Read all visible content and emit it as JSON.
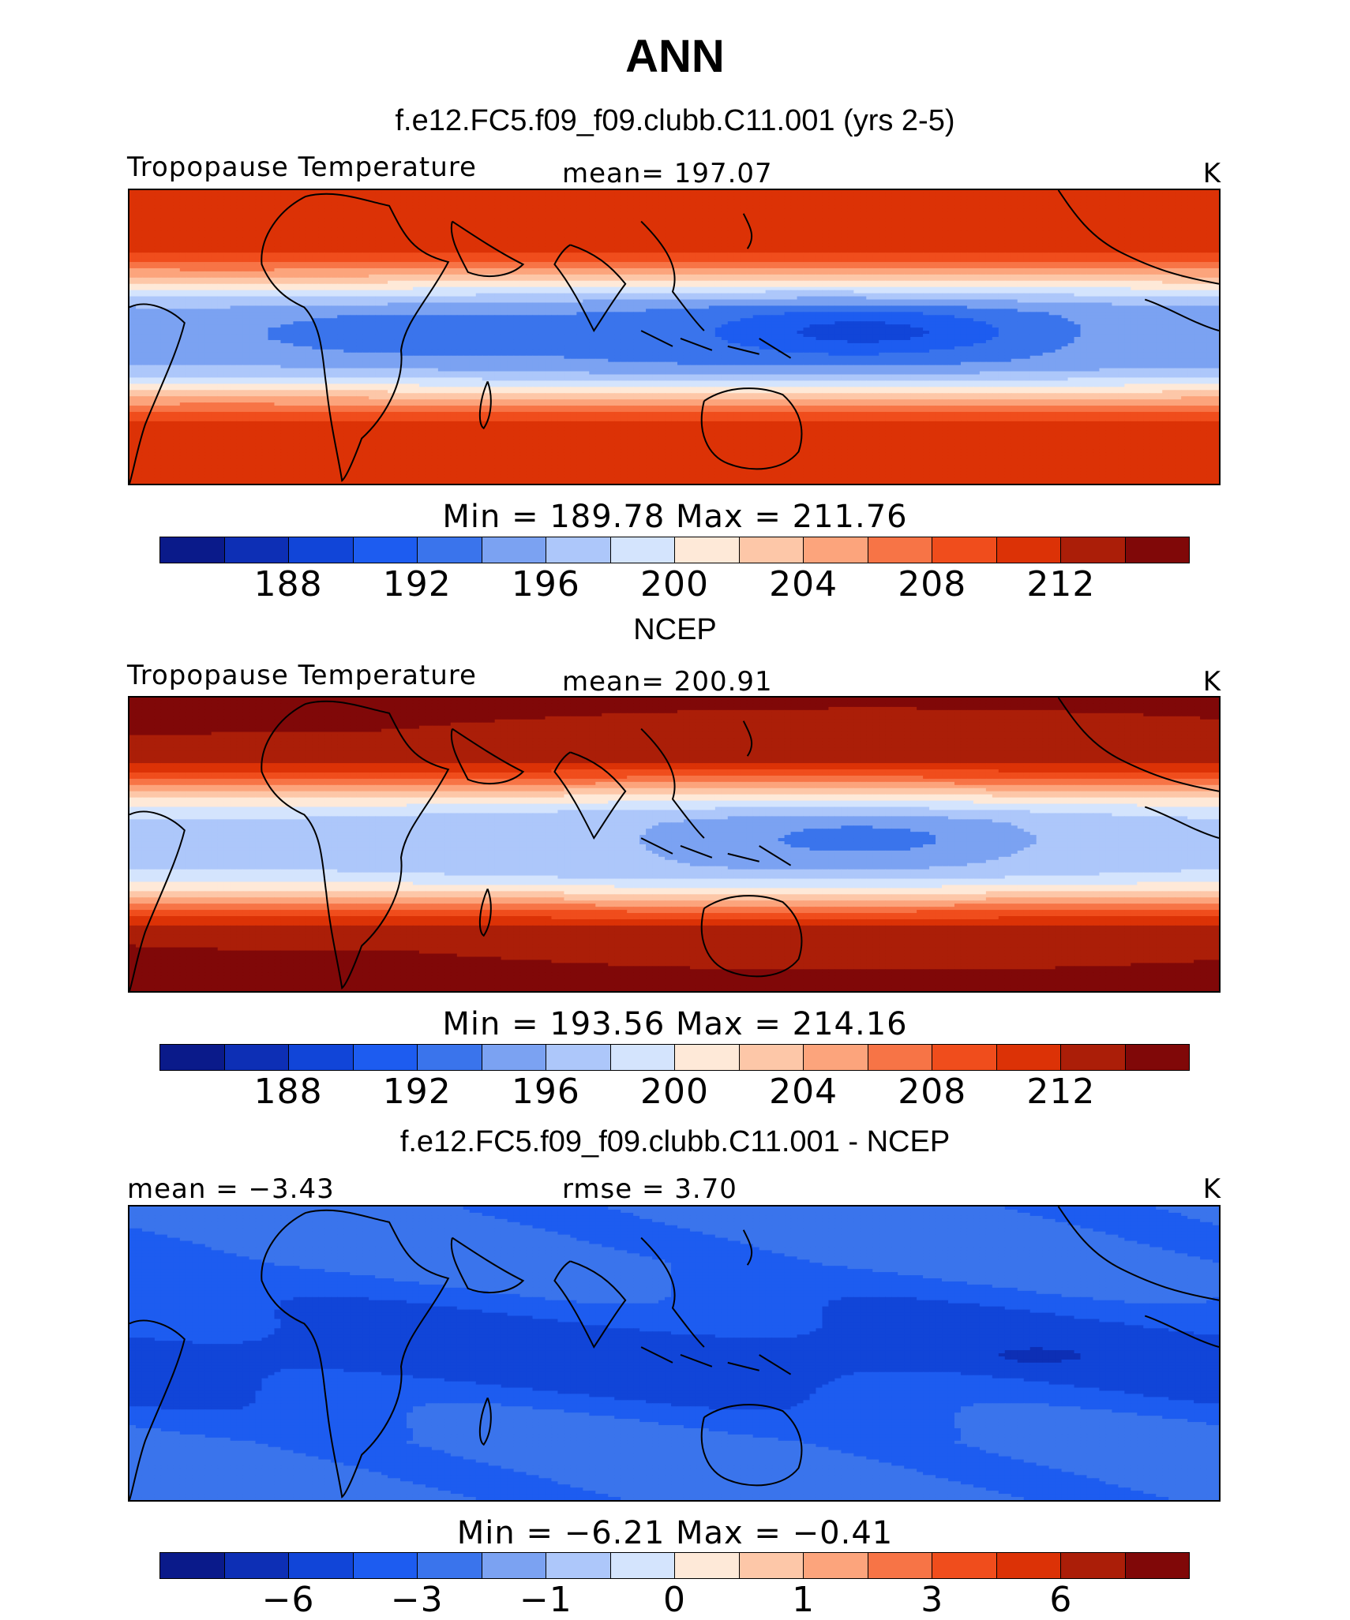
{
  "page_title": "ANN",
  "colors": [
    "#0a1a8a",
    "#0d2fb5",
    "#1145d8",
    "#1d5cf0",
    "#3a74ec",
    "#7ba2f2",
    "#adc7fa",
    "#d4e4fd",
    "#fee9d8",
    "#fdc7a8",
    "#fca47c",
    "#f77446",
    "#f04d1c",
    "#dc3206",
    "#ab1e08",
    "#800808"
  ],
  "panels": [
    {
      "title": "f.e12.FC5.f09_f09.clubb.C11.001 (yrs 2-5)",
      "left_label": "Tropopause Temperature",
      "mid_label": "mean=  197.07",
      "units": "K",
      "minmax": "Min  =  189.78  Max  =  211.76",
      "ticks": [
        "188",
        "192",
        "196",
        "200",
        "204",
        "208",
        "212"
      ],
      "field": {
        "kind": "abs",
        "equator_value": 194.5,
        "pole_value": 211.5,
        "pacific_min_value": 190.0,
        "africa_min_value": 191.5
      }
    },
    {
      "title": "NCEP",
      "left_label": "Tropopause Temperature",
      "mid_label": "mean=  200.91",
      "units": "K",
      "minmax": "Min  =  193.56  Max  =  214.16",
      "ticks": [
        "188",
        "192",
        "196",
        "200",
        "204",
        "208",
        "212"
      ],
      "field": {
        "kind": "abs",
        "equator_value": 197.0,
        "pole_value": 214.0,
        "pacific_min_value": 194.0,
        "africa_min_value": 196.0
      }
    },
    {
      "title": "f.e12.FC5.f09_f09.clubb.C11.001 - NCEP",
      "left_label": "mean =    −3.43",
      "mid_label": "rmse =     3.70",
      "units": "K",
      "minmax": "Min  =    −6.21  Max  =    −0.41",
      "ticks": [
        "−6",
        "−3",
        "−1",
        "0",
        "1",
        "3",
        "6"
      ],
      "field": {
        "kind": "diff",
        "equator_value": -4.8,
        "pole_value": -2.6,
        "pacific_min_value": -6.2,
        "africa_min_value": -5.2
      }
    }
  ]
}
